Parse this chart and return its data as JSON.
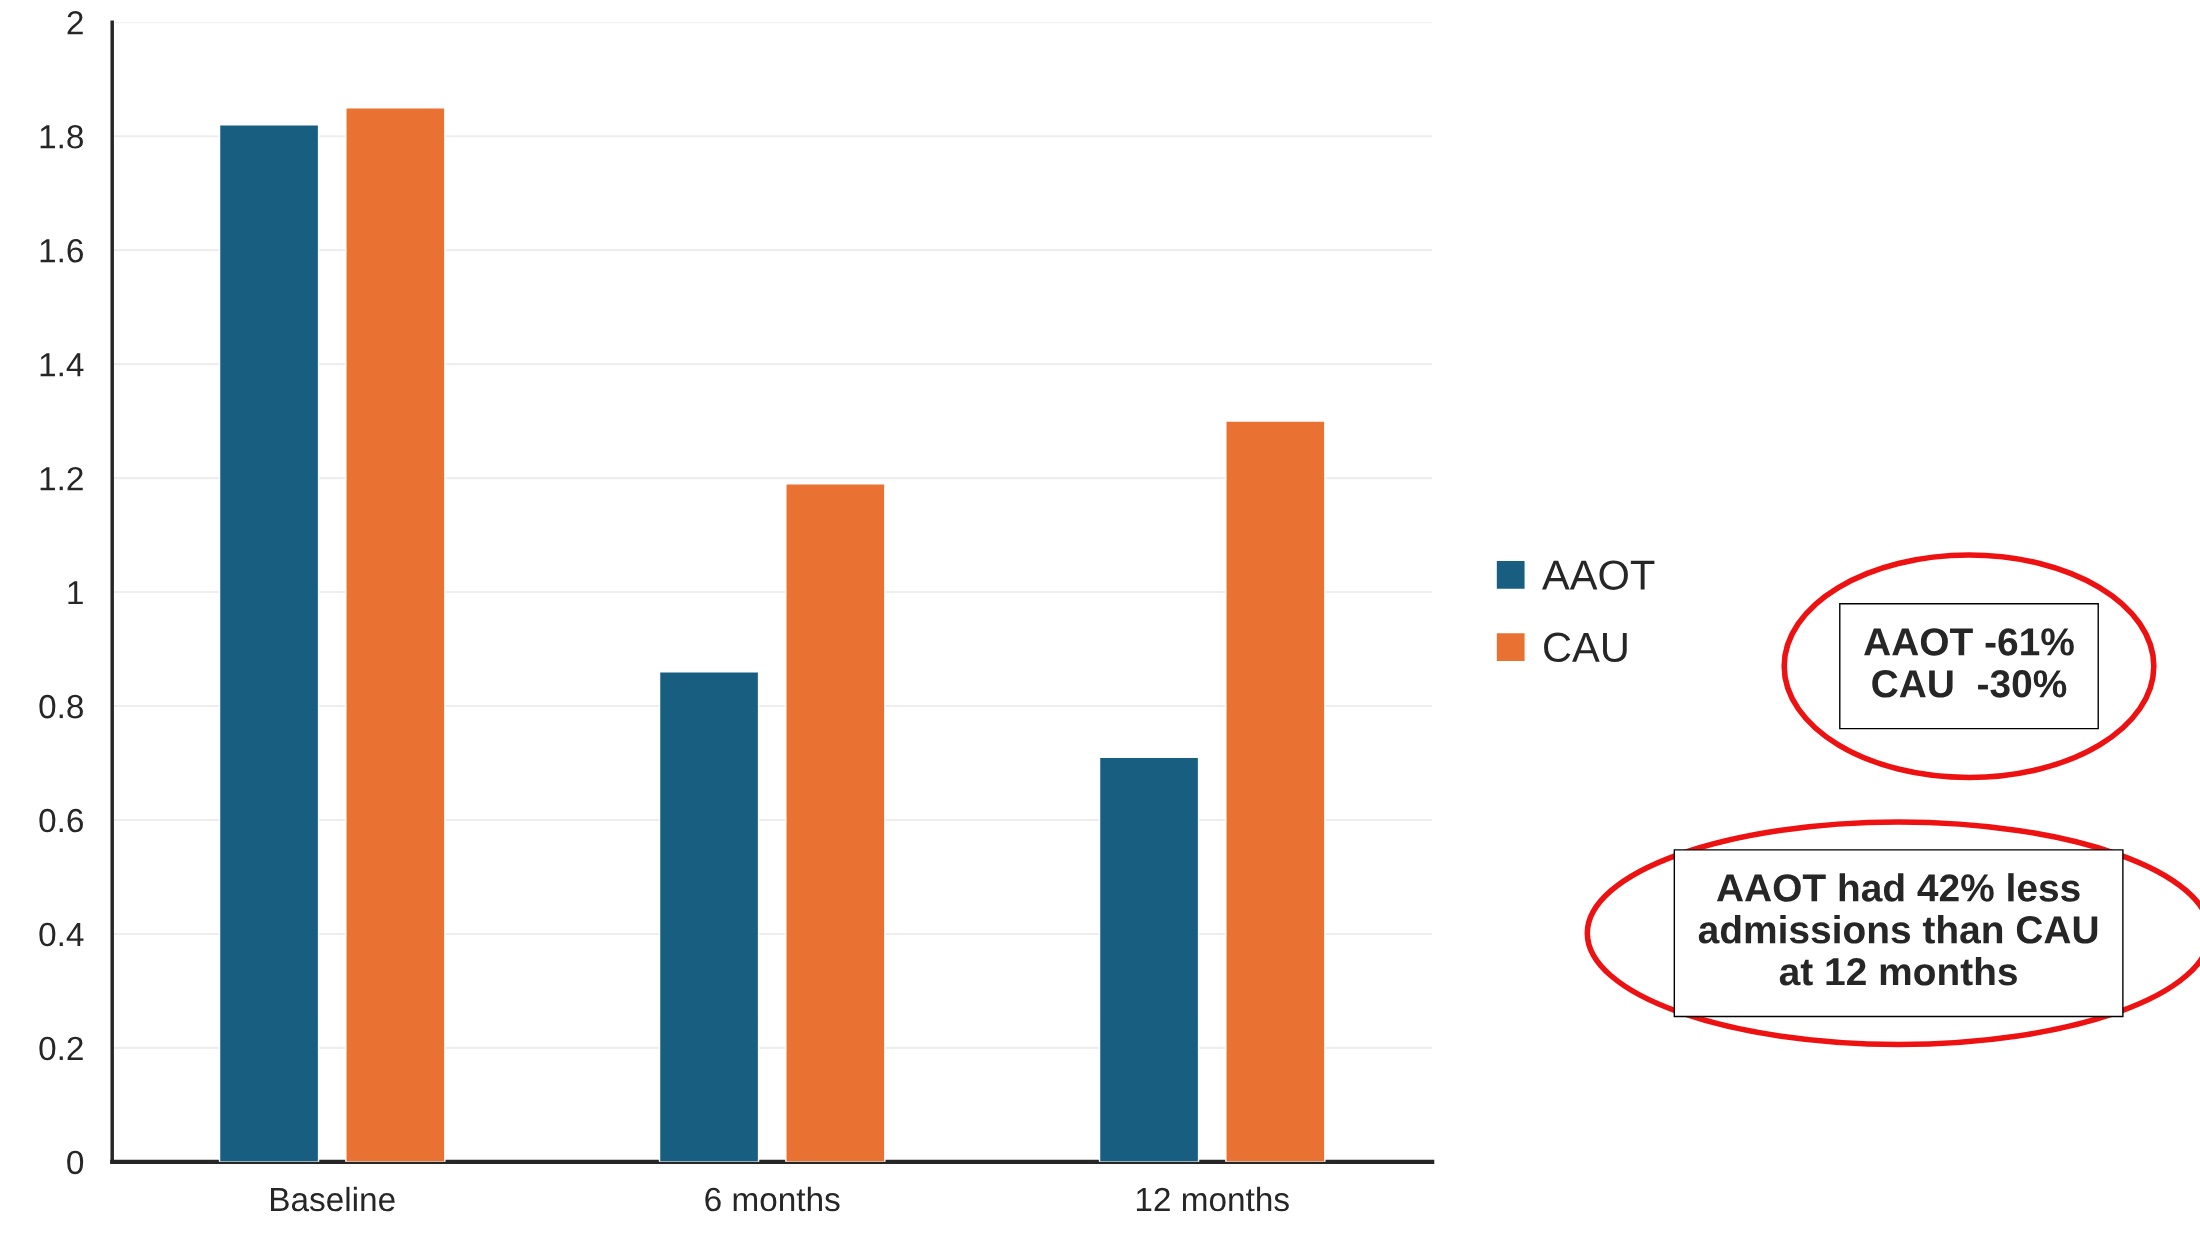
{
  "chart_data": {
    "type": "bar",
    "categories": [
      "Baseline",
      "6 months",
      "12 months"
    ],
    "series": [
      {
        "name": "AAOT",
        "color": "#175e80",
        "values": [
          1.82,
          0.86,
          0.71
        ]
      },
      {
        "name": "CAU",
        "color": "#e97132",
        "values": [
          1.85,
          1.19,
          1.3
        ]
      }
    ],
    "ylim": [
      0,
      2
    ],
    "yticks": [
      0,
      0.2,
      0.4,
      0.6,
      0.8,
      1,
      1.2,
      1.4,
      1.6,
      1.8,
      2
    ],
    "grid": "y",
    "legend": "right",
    "annotations": [
      "AAOT -61%\nCAU  -30%",
      "AAOT had 42% less\nadmissions than CAU\nat 12 months"
    ]
  }
}
